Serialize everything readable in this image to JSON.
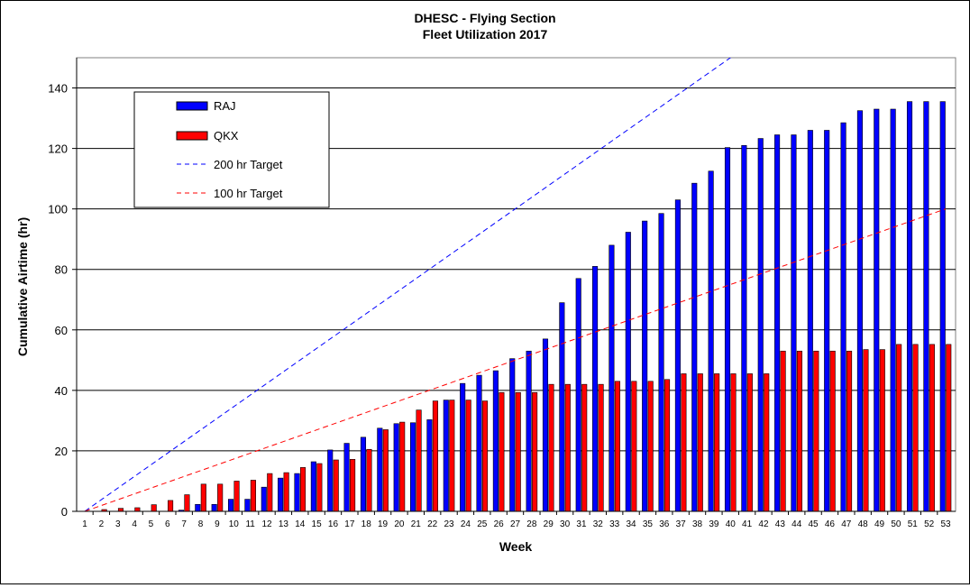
{
  "chart_data": {
    "type": "bar",
    "title": "DHESC - Flying Section",
    "subtitle": "Fleet Utilization 2017",
    "xlabel": "Week",
    "ylabel": "Cumulative Airtime (hr)",
    "ylim": [
      0,
      150
    ],
    "yticks": [
      0,
      20,
      40,
      60,
      80,
      100,
      120,
      140
    ],
    "grid": true,
    "legend_position": "top-left",
    "categories": [
      "1",
      "2",
      "3",
      "4",
      "5",
      "6",
      "7",
      "8",
      "9",
      "10",
      "11",
      "12",
      "13",
      "14",
      "15",
      "16",
      "17",
      "18",
      "19",
      "20",
      "21",
      "22",
      "23",
      "24",
      "25",
      "26",
      "27",
      "28",
      "29",
      "30",
      "31",
      "32",
      "33",
      "34",
      "35",
      "36",
      "37",
      "38",
      "39",
      "40",
      "41",
      "42",
      "43",
      "44",
      "45",
      "46",
      "47",
      "48",
      "49",
      "50",
      "51",
      "52",
      "53"
    ],
    "series": [
      {
        "name": "RAJ",
        "kind": "bar",
        "color": "#0000ff",
        "values": [
          0,
          0,
          0,
          0,
          0,
          0,
          0.4,
          2.3,
          2.3,
          4,
          4,
          8,
          11,
          12.5,
          16.4,
          20.3,
          22.5,
          24.5,
          27.5,
          29,
          29.3,
          30.3,
          36.8,
          42.3,
          45,
          46.5,
          50.5,
          53,
          57,
          69,
          77,
          81,
          88,
          92.3,
          96,
          98.5,
          103,
          108.5,
          112.5,
          120.3,
          121,
          123.3,
          124.5,
          124.5,
          126,
          126,
          128.5,
          132.5,
          133,
          133,
          135.5,
          135.5,
          135.5
        ]
      },
      {
        "name": "QKX",
        "kind": "bar",
        "color": "#ff0000",
        "values": [
          0,
          0.6,
          1,
          1.2,
          2.2,
          3.6,
          5.5,
          9,
          9,
          10,
          10.3,
          12.5,
          12.8,
          14.5,
          15.8,
          17,
          17.2,
          20.5,
          27,
          29.5,
          33.5,
          36.5,
          36.8,
          36.8,
          36.5,
          39.3,
          39.3,
          39.3,
          42,
          42,
          42,
          42,
          43,
          43,
          43,
          43.6,
          45.5,
          45.5,
          45.5,
          45.5,
          45.5,
          45.5,
          53,
          53,
          53,
          53,
          53,
          53.5,
          53.5,
          55.2,
          55.2,
          55.2,
          55.2
        ]
      },
      {
        "name": "200 hr Target",
        "kind": "line",
        "color": "#0000ff",
        "dash": "dashed",
        "target_total": 200
      },
      {
        "name": "100 hr Target",
        "kind": "line",
        "color": "#ff0000",
        "dash": "dashed",
        "target_total": 100
      }
    ]
  }
}
